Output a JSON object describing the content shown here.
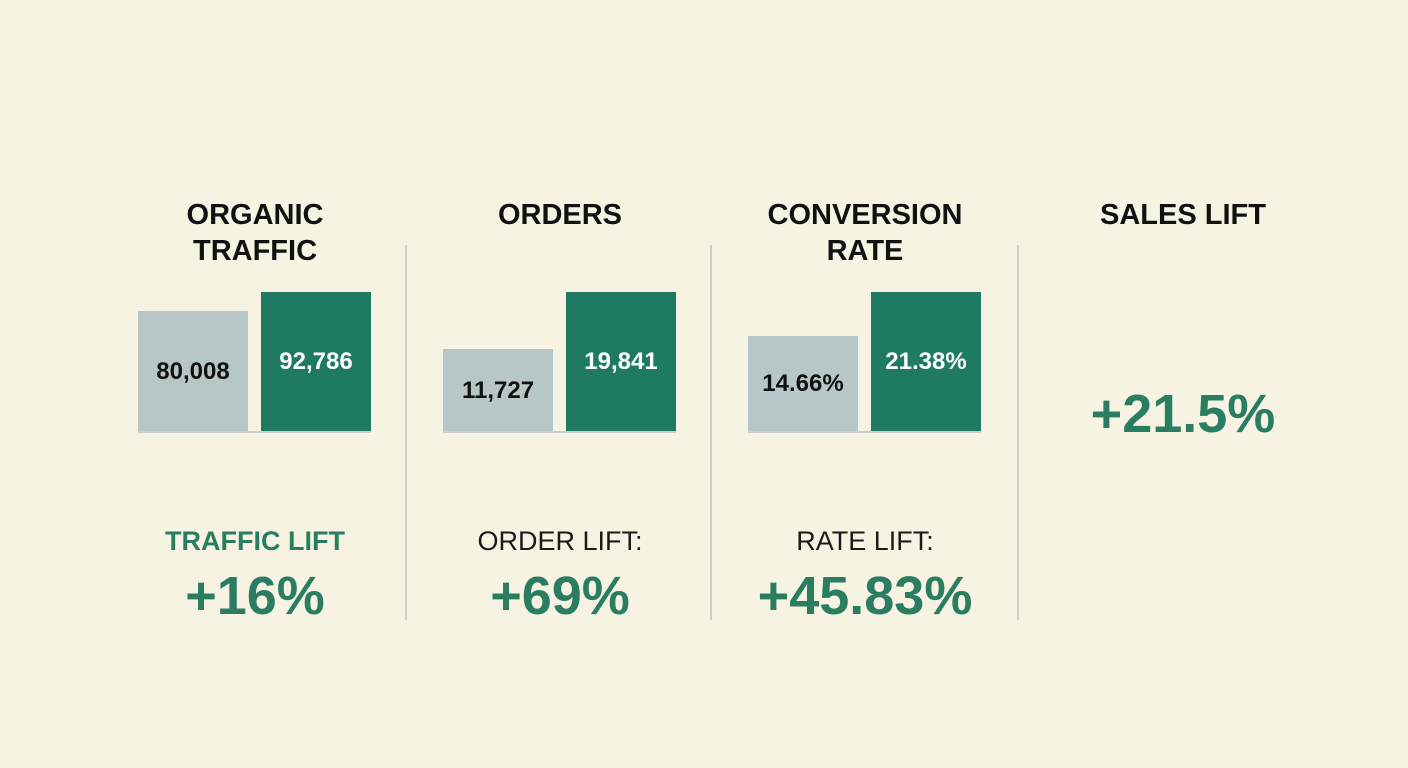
{
  "chart_data": [
    {
      "type": "bar",
      "title": "ORGANIC TRAFFIC",
      "values": [
        80008,
        92786
      ],
      "value_labels": [
        "80,008",
        "92,786"
      ],
      "colors": [
        "#b7c6c6",
        "#1f7a62"
      ],
      "lift_label": "TRAFFIC LIFT",
      "lift_value": "+16%"
    },
    {
      "type": "bar",
      "title": "ORDERS",
      "values": [
        11727,
        19841
      ],
      "value_labels": [
        "11,727",
        "19,841"
      ],
      "colors": [
        "#b7c6c6",
        "#1f7a62"
      ],
      "lift_label": "ORDER LIFT:",
      "lift_value": "+69%"
    },
    {
      "type": "bar",
      "title": "CONVERSION RATE",
      "values": [
        14.66,
        21.38
      ],
      "value_labels": [
        "14.66%",
        "21.38%"
      ],
      "colors": [
        "#b7c6c6",
        "#1f7a62"
      ],
      "lift_label": "RATE LIFT:",
      "lift_value": "+45.83%"
    }
  ],
  "sales_lift": {
    "title": "SALES LIFT",
    "value": "+21.5%"
  }
}
